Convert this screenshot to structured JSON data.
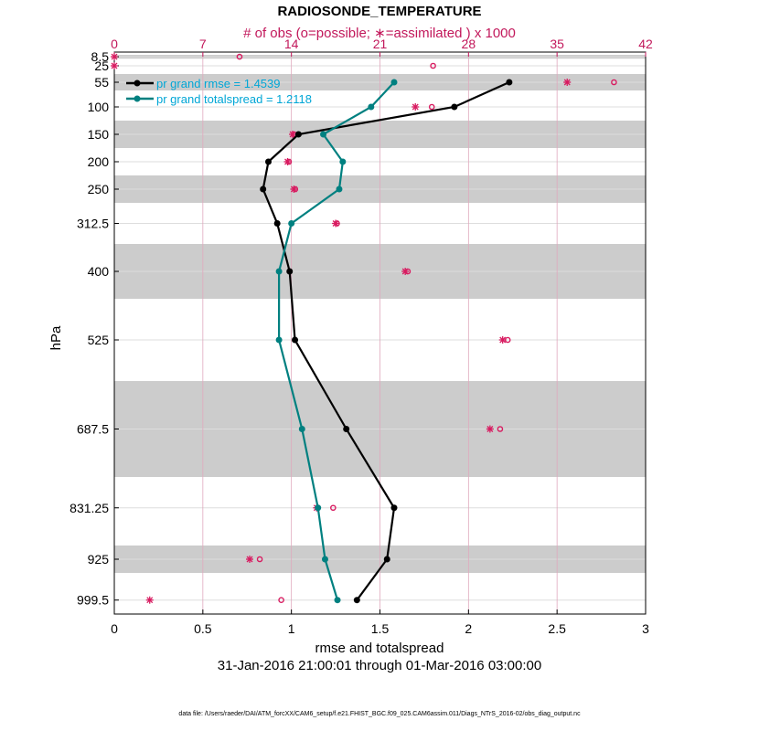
{
  "chart_data": {
    "type": "line",
    "title": "RADIOSONDE_TEMPERATURE",
    "top_axis_label": "# of obs (o=possible; ∗=assimilated ) x 1000",
    "xlabel": "rmse and totalspread",
    "ylabel": "hPa",
    "date_range": "31-Jan-2016 21:00:01 through 01-Mar-2016 03:00:00",
    "footer": "data file: /Users/raeder/DAI/ATM_forcXX/CAM6_setup/f.e21.FHIST_BGC.f09_025.CAM6assim.011/Diags_NTrS_2016-02/obs_diag_output.nc",
    "xlim": [
      0,
      3
    ],
    "xticks": [
      "0",
      "0.5",
      "1",
      "1.5",
      "2",
      "2.5",
      "3"
    ],
    "top_xlim": [
      0,
      42
    ],
    "top_xticks": [
      "0",
      "7",
      "14",
      "21",
      "28",
      "35",
      "42"
    ],
    "levels": [
      8.5,
      25,
      55,
      100,
      150,
      200,
      250,
      312.5,
      400,
      525,
      687.5,
      831.25,
      925,
      999.5
    ],
    "level_labels": [
      "8.5",
      "25",
      "55",
      "100",
      "150",
      "200",
      "250",
      "312.5",
      "400",
      "525",
      "687.5",
      "831.25",
      "925",
      "999.5"
    ],
    "series": [
      {
        "name": "pr grand rmse = 1.4539",
        "color": "#000000",
        "levels": [
          55,
          100,
          150,
          200,
          250,
          312.5,
          400,
          525,
          687.5,
          831.25,
          925,
          999.5
        ],
        "values": [
          2.23,
          1.92,
          1.04,
          0.87,
          0.84,
          0.92,
          0.99,
          1.02,
          1.31,
          1.58,
          1.54,
          1.37
        ]
      },
      {
        "name": "pr grand totalspread = 1.2118",
        "color": "#008080",
        "levels": [
          55,
          100,
          150,
          200,
          250,
          312.5,
          400,
          525,
          687.5,
          831.25,
          925,
          999.5
        ],
        "values": [
          1.58,
          1.45,
          1.18,
          1.29,
          1.27,
          1.0,
          0.93,
          0.93,
          1.06,
          1.15,
          1.19,
          1.26
        ]
      }
    ],
    "obs_possible": {
      "levels": [
        8.5,
        25,
        55,
        100,
        150,
        200,
        250,
        312.5,
        400,
        525,
        687.5,
        831.25,
        925,
        999.5
      ],
      "values": [
        9.9,
        25.2,
        39.5,
        25.1,
        14.2,
        13.8,
        14.3,
        17.6,
        23.2,
        31.1,
        30.5,
        17.3,
        11.5,
        13.2
      ]
    },
    "obs_assimilated": {
      "levels": [
        8.5,
        25,
        55,
        100,
        150,
        200,
        250,
        312.5,
        400,
        525,
        687.5,
        831.25,
        925,
        999.5
      ],
      "values": [
        0.0,
        0.0,
        35.8,
        23.8,
        14.1,
        13.7,
        14.2,
        17.5,
        23.0,
        30.7,
        29.7,
        16.0,
        10.7,
        2.8
      ]
    },
    "shaded_bands": [
      [
        5,
        12
      ],
      [
        40,
        70
      ],
      [
        125,
        175
      ],
      [
        225,
        275
      ],
      [
        350,
        450
      ],
      [
        600,
        775
      ],
      [
        900,
        950
      ]
    ],
    "grid": true,
    "legend_position": "top-left"
  }
}
